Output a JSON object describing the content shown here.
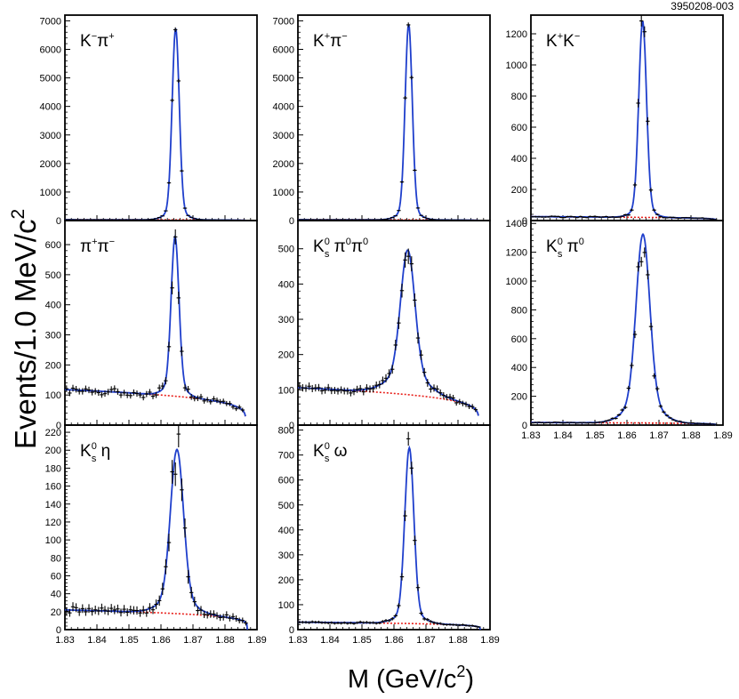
{
  "figure_id": "3950208-003",
  "y_axis_title": "Events/1.0 MeV/c",
  "y_axis_title_sup": "2",
  "x_axis_title": "M (GeV/c",
  "x_axis_title_sup": "2",
  "x_axis_title_end": ")",
  "colors": {
    "signal_fit": "#1f3fcc",
    "background": "#e8201b",
    "total_fit": "#b02a7a",
    "data": "#000000"
  },
  "chart_data": [
    {
      "type": "scatter",
      "panel": "K-pi+",
      "label_parts": [
        {
          "t": "K"
        },
        {
          "t": "−",
          "s": "sup"
        },
        {
          "t": "π"
        },
        {
          "t": "+",
          "s": "sup"
        }
      ],
      "xlim": [
        1.83,
        1.89
      ],
      "ylim": [
        0,
        7200
      ],
      "yticks": [
        0,
        1000,
        2000,
        3000,
        4000,
        5000,
        6000,
        7000
      ],
      "xticks": [
        1.83,
        1.84,
        1.85,
        1.86,
        1.87,
        1.88,
        1.89
      ],
      "show_xtick_labels": false,
      "peak": {
        "mean": 1.8646,
        "amplitude": 6700,
        "sigma": 0.0011,
        "tail_fraction": 0.05,
        "tail_width": 0.003
      },
      "background": {
        "level": 30,
        "endpoint": 1.8865
      },
      "data_range": [
        1.8305,
        1.8865
      ],
      "noise": 0.0
    },
    {
      "type": "scatter",
      "panel": "K+pi-",
      "label_parts": [
        {
          "t": "K"
        },
        {
          "t": "+",
          "s": "sup"
        },
        {
          "t": "π"
        },
        {
          "t": "−",
          "s": "sup"
        }
      ],
      "xlim": [
        1.83,
        1.89
      ],
      "ylim": [
        0,
        7200
      ],
      "yticks": [
        0,
        1000,
        2000,
        3000,
        4000,
        5000,
        6000,
        7000
      ],
      "xticks": [
        1.83,
        1.84,
        1.85,
        1.86,
        1.87,
        1.88,
        1.89
      ],
      "show_xtick_labels": false,
      "peak": {
        "mean": 1.8646,
        "amplitude": 6850,
        "sigma": 0.0011,
        "tail_fraction": 0.05,
        "tail_width": 0.003
      },
      "background": {
        "level": 30,
        "endpoint": 1.8865
      },
      "data_range": [
        1.8305,
        1.8865
      ],
      "noise": 0.0
    },
    {
      "type": "scatter",
      "panel": "K+K-",
      "label_parts": [
        {
          "t": "K"
        },
        {
          "t": "+",
          "s": "sup"
        },
        {
          "t": "K"
        },
        {
          "t": "−",
          "s": "sup"
        }
      ],
      "xlim": [
        1.83,
        1.89
      ],
      "ylim": [
        0,
        1320
      ],
      "yticks": [
        0,
        200,
        400,
        600,
        800,
        1000,
        1200
      ],
      "xticks": [
        1.83,
        1.84,
        1.85,
        1.86,
        1.87,
        1.88,
        1.89
      ],
      "show_xtick_labels": false,
      "peak": {
        "mean": 1.8649,
        "amplitude": 1260,
        "sigma": 0.0012,
        "tail_fraction": 0.05,
        "tail_width": 0.003
      },
      "background": {
        "level": 25,
        "endpoint": 1.8878
      },
      "data_range": [
        1.8305,
        1.8875
      ],
      "noise": 0.25
    },
    {
      "type": "scatter",
      "panel": "pi+pi-",
      "label_parts": [
        {
          "t": "π"
        },
        {
          "t": "+",
          "s": "sup"
        },
        {
          "t": "π"
        },
        {
          "t": "−",
          "s": "sup"
        }
      ],
      "xlim": [
        1.83,
        1.89
      ],
      "ylim": [
        0,
        680
      ],
      "yticks": [
        0,
        100,
        200,
        300,
        400,
        500,
        600
      ],
      "xticks": [
        1.83,
        1.84,
        1.85,
        1.86,
        1.87,
        1.88,
        1.89
      ],
      "show_xtick_labels": false,
      "peak": {
        "mean": 1.8644,
        "amplitude": 530,
        "sigma": 0.0012,
        "tail_fraction": 0.08,
        "tail_width": 0.003
      },
      "background": {
        "level": 118,
        "endpoint": 1.8865
      },
      "data_range": [
        1.8305,
        1.8855
      ],
      "noise": 0.12
    },
    {
      "type": "scatter",
      "panel": "KS pi0 pi0",
      "label_parts": [
        {
          "t": "K"
        },
        {
          "t": "0",
          "s": "sup"
        },
        {
          "t": "s",
          "s": "sub"
        },
        {
          "t": " π"
        },
        {
          "t": "0",
          "s": "sup"
        },
        {
          "t": "π"
        },
        {
          "t": "0",
          "s": "sup"
        }
      ],
      "xlim": [
        1.83,
        1.89
      ],
      "ylim": [
        0,
        580
      ],
      "yticks": [
        0,
        100,
        200,
        300,
        400,
        500
      ],
      "xticks": [
        1.83,
        1.84,
        1.85,
        1.86,
        1.87,
        1.88,
        1.89
      ],
      "show_xtick_labels": false,
      "peak": {
        "mean": 1.8643,
        "amplitude": 410,
        "sigma": 0.0022,
        "tail_fraction": 0.15,
        "tail_width": 0.006
      },
      "background": {
        "level": 106,
        "endpoint": 1.8865
      },
      "data_range": [
        1.8305,
        1.8865
      ],
      "noise": 0.08
    },
    {
      "type": "scatter",
      "panel": "KS pi0",
      "label_parts": [
        {
          "t": "K"
        },
        {
          "t": "0",
          "s": "sup"
        },
        {
          "t": "s",
          "s": "sub"
        },
        {
          "t": " π"
        },
        {
          "t": "0",
          "s": "sup"
        }
      ],
      "xlim": [
        1.83,
        1.89
      ],
      "ylim": [
        0,
        1420
      ],
      "yticks": [
        0,
        200,
        400,
        600,
        800,
        1000,
        1200,
        1400
      ],
      "xticks": [
        1.83,
        1.84,
        1.85,
        1.86,
        1.87,
        1.88,
        1.89
      ],
      "show_xtick_labels": true,
      "xtick_labels": [
        "1.83",
        "1.84",
        "1.85",
        "1.86",
        "1.87",
        "1.88",
        "1.89"
      ],
      "peak": {
        "mean": 1.865,
        "amplitude": 1310,
        "sigma": 0.0021,
        "tail_fraction": 0.12,
        "tail_width": 0.005
      },
      "background": {
        "level": 18,
        "endpoint": 1.8878
      },
      "data_range": [
        1.8305,
        1.8875
      ],
      "noise": 0.25
    },
    {
      "type": "scatter",
      "panel": "KS eta",
      "label_parts": [
        {
          "t": "K"
        },
        {
          "t": "0",
          "s": "sup"
        },
        {
          "t": "s",
          "s": "sub"
        },
        {
          "t": " η"
        }
      ],
      "xlim": [
        1.83,
        1.89
      ],
      "ylim": [
        0,
        228
      ],
      "yticks": [
        0,
        20,
        40,
        60,
        80,
        100,
        120,
        140,
        160,
        180,
        200,
        220
      ],
      "xticks": [
        1.83,
        1.84,
        1.85,
        1.86,
        1.87,
        1.88,
        1.89
      ],
      "show_xtick_labels": true,
      "xtick_labels": [
        "1.83",
        "1.84",
        "1.85",
        "1.86",
        "1.87",
        "1.88",
        "1.89"
      ],
      "peak": {
        "mean": 1.865,
        "amplitude": 183,
        "sigma": 0.002,
        "tail_fraction": 0.1,
        "tail_width": 0.005
      },
      "background": {
        "level": 22,
        "endpoint": 1.887
      },
      "data_range": [
        1.8305,
        1.8865
      ],
      "noise": 0.18
    },
    {
      "type": "scatter",
      "panel": "KS omega",
      "label_parts": [
        {
          "t": "K"
        },
        {
          "t": "0",
          "s": "sup"
        },
        {
          "t": "s",
          "s": "sub"
        },
        {
          "t": " ω"
        }
      ],
      "xlim": [
        1.83,
        1.89
      ],
      "ylim": [
        0,
        820
      ],
      "yticks": [
        0,
        100,
        200,
        300,
        400,
        500,
        600,
        700,
        800
      ],
      "xticks": [
        1.83,
        1.84,
        1.85,
        1.86,
        1.87,
        1.88,
        1.89
      ],
      "show_xtick_labels": true,
      "xtick_labels": [
        "1.83",
        "1.84",
        "1.85",
        "1.86",
        "1.87",
        "1.88",
        "1.89"
      ],
      "peak": {
        "mean": 1.8648,
        "amplitude": 705,
        "sigma": 0.0014,
        "tail_fraction": 0.06,
        "tail_width": 0.004
      },
      "background": {
        "level": 30,
        "endpoint": 1.887
      },
      "data_range": [
        1.8305,
        1.8865
      ],
      "noise": 0.12
    }
  ]
}
